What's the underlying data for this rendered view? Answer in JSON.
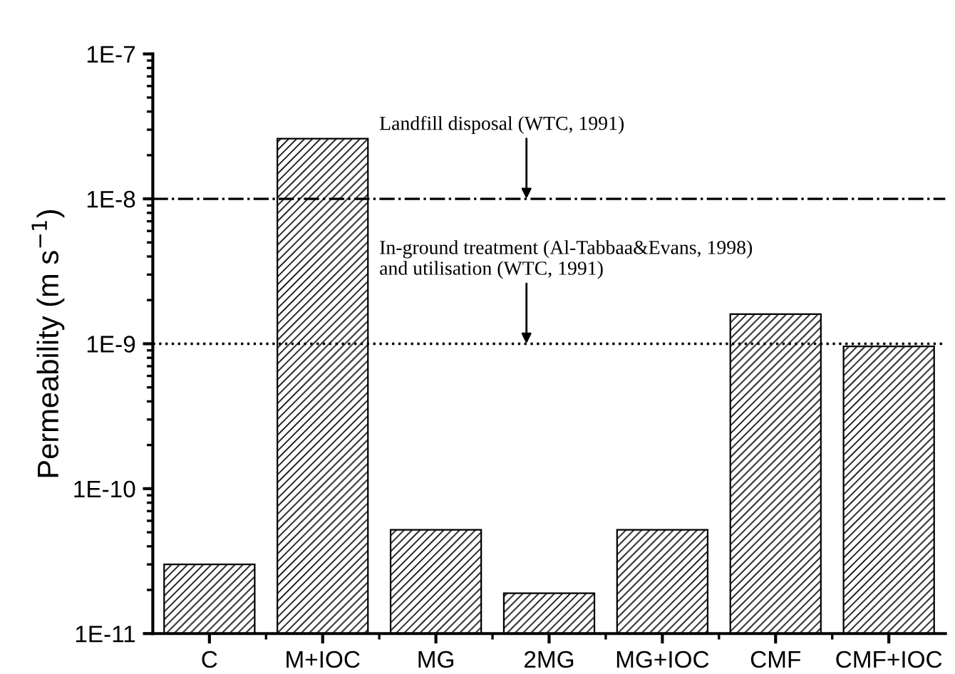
{
  "chart_data": {
    "type": "bar",
    "ylabel": "Permeability (m s$^{−1}$)",
    "categories": [
      "C",
      "M+IOC",
      "MG",
      "2MG",
      "MG+IOC",
      "CMF",
      "CMF+IOC"
    ],
    "values": [
      3e-11,
      2.6e-08,
      5.2e-11,
      1.9e-11,
      5.2e-11,
      1.6e-09,
      9.6e-10
    ],
    "color": "#000000",
    "log": "y",
    "ylim": [
      1e-11,
      1e-07
    ],
    "yticks": [
      {
        "value": 1e-11,
        "label": "1E-11"
      },
      {
        "value": 1e-10,
        "label": "1E-10"
      },
      {
        "value": 1e-09,
        "label": "1E-9"
      },
      {
        "value": 1e-08,
        "label": "1E-8"
      },
      {
        "value": 1e-07,
        "label": "1E-7"
      }
    ],
    "ref_lines": [
      {
        "axis": "y",
        "value": 1e-08,
        "label": "Landfill disposal (WTC, 1991)",
        "line_style": "dashdot",
        "color": "#000000"
      },
      {
        "axis": "y",
        "value": 1e-09,
        "label": "In-ground treatment (Al-Tabbaa&Evans, 1998)\nand utilisation (WTC, 1991)",
        "line_style": "dotted",
        "color": "#000000"
      }
    ],
    "grid": false,
    "legend": false
  }
}
